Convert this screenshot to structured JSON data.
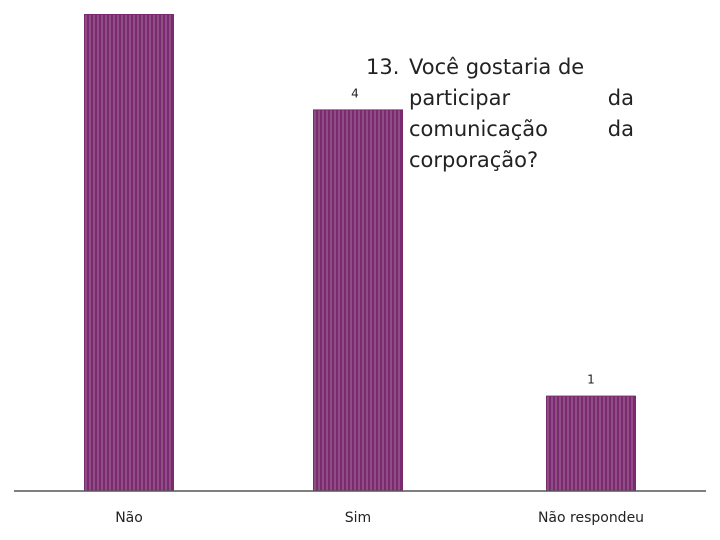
{
  "chart_data": {
    "type": "bar",
    "title": {
      "number": "13.",
      "lines": [
        {
          "text": "Você gostaria de",
          "end": ""
        },
        {
          "text": "participar",
          "end": "da"
        },
        {
          "text": "comunicação",
          "end": "da"
        },
        {
          "text": "corporação?",
          "end": ""
        }
      ]
    },
    "categories": [
      "Não",
      "Sim",
      "Não respondeu"
    ],
    "values": [
      5,
      4,
      1
    ],
    "data_labels": [
      "",
      "4",
      "1"
    ],
    "ylim": [
      0,
      5
    ],
    "grid": false,
    "bar_color": "#7a2a6e",
    "stripe_color": "#c9a6c3"
  }
}
